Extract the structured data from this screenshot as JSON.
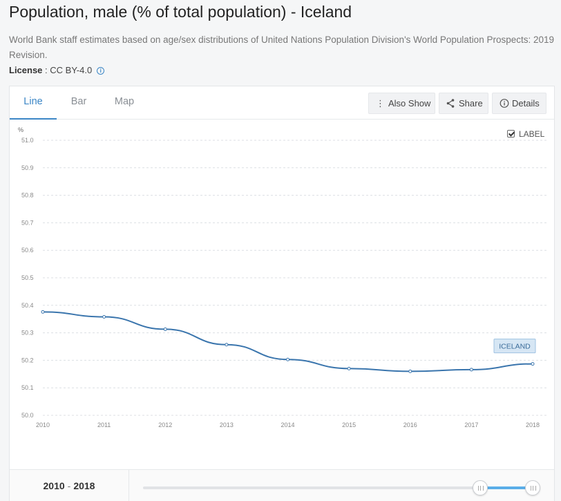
{
  "page": {
    "title": "Population, male (% of total population) - Iceland",
    "description": "World Bank staff estimates based on age/sex distributions of United Nations Population Division's World Population Prospects: 2019 Revision.",
    "license_label": "License",
    "license_sep": " : ",
    "license_value": "CC BY-4.0"
  },
  "tabs": [
    {
      "label": "Line",
      "active": true
    },
    {
      "label": "Bar",
      "active": false
    },
    {
      "label": "Map",
      "active": false
    }
  ],
  "toolbar": {
    "also_show": "Also Show",
    "share": "Share",
    "details": "Details"
  },
  "label_toggle": {
    "text": "LABEL",
    "checked": true
  },
  "footer": {
    "range_start": "2010",
    "range_sep": "-",
    "range_end": "2018"
  },
  "colors": {
    "accent": "#3b86c6",
    "line": "#3a75ad",
    "slider_fill": "#5aaee8"
  },
  "icons": {
    "also_show": "vertical-ellipsis-icon",
    "share": "share-icon",
    "details": "info-icon"
  },
  "chart_data": {
    "type": "line",
    "ylabel": "%",
    "ylim": [
      50.0,
      51.0
    ],
    "yticks": [
      "51.0",
      "50.9",
      "50.8",
      "50.7",
      "50.6",
      "50.5",
      "50.4",
      "50.3",
      "50.2",
      "50.1",
      "50.0"
    ],
    "x": [
      "2010",
      "2011",
      "2012",
      "2013",
      "2014",
      "2015",
      "2016",
      "2017",
      "2018"
    ],
    "series": [
      {
        "name": "ICELAND",
        "values": [
          50.376,
          50.358,
          50.313,
          50.257,
          50.203,
          50.17,
          50.16,
          50.166,
          50.187
        ]
      }
    ],
    "grid": true,
    "series_label_visible": true
  }
}
